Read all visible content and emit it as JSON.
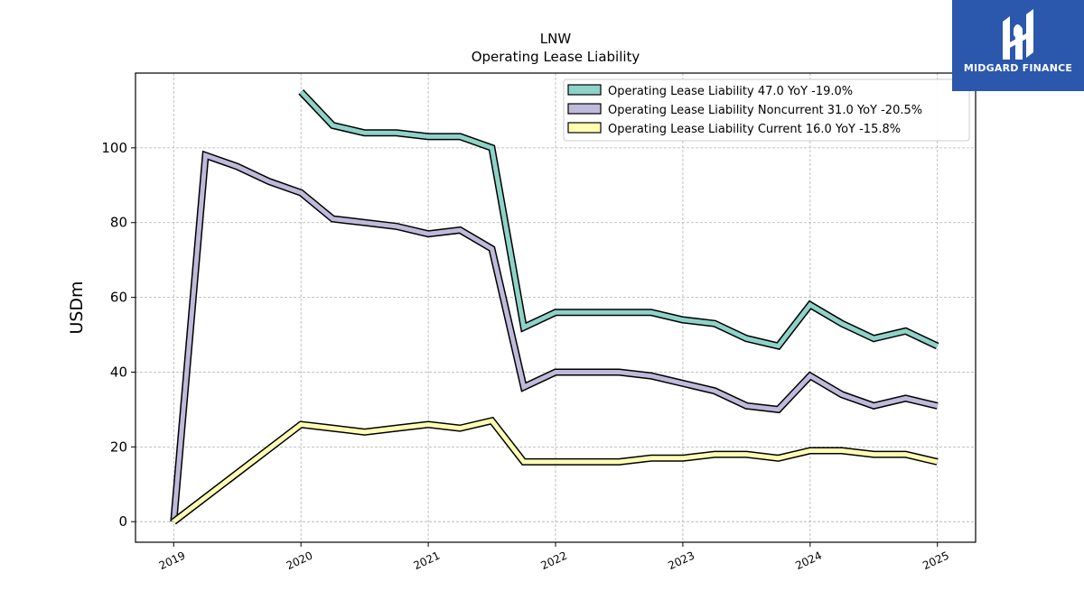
{
  "brand": {
    "name": "MIDGARD FINANCE",
    "bg_color": "#2b57ad"
  },
  "chart_data": {
    "type": "line",
    "title": "LNW",
    "subtitle": "Operating Lease Liability",
    "xlabel": "",
    "ylabel": "USDm",
    "ylim": [
      -5.5,
      120
    ],
    "xlim": [
      2018.7,
      2025.3
    ],
    "yticks": [
      0,
      20,
      40,
      60,
      80,
      100
    ],
    "xticks": [
      2019,
      2020,
      2021,
      2022,
      2023,
      2024,
      2025
    ],
    "xtick_labels": [
      "2019",
      "2020",
      "2021",
      "2022",
      "2023",
      "2024",
      "2025"
    ],
    "grid": true,
    "legend_position": "top-right",
    "series": [
      {
        "name": "Operating Lease Liability  47.0 YoY -19.0%",
        "color": "#8dd3c7",
        "points": [
          [
            2020.0,
            115.0
          ],
          [
            2020.25,
            106.0
          ],
          [
            2020.5,
            104.0
          ],
          [
            2020.75,
            104.0
          ],
          [
            2021.0,
            103.0
          ],
          [
            2021.25,
            103.0
          ],
          [
            2021.5,
            100.0
          ],
          [
            2021.75,
            52.0
          ],
          [
            2022.0,
            56.0
          ],
          [
            2022.25,
            56.0
          ],
          [
            2022.5,
            56.0
          ],
          [
            2022.75,
            56.0
          ],
          [
            2023.0,
            54.0
          ],
          [
            2023.25,
            53.0
          ],
          [
            2023.5,
            49.0
          ],
          [
            2023.75,
            47.0
          ],
          [
            2024.0,
            58.0
          ],
          [
            2024.25,
            53.0
          ],
          [
            2024.5,
            49.0
          ],
          [
            2024.75,
            51.0
          ],
          [
            2025.0,
            47.0
          ]
        ]
      },
      {
        "name": "Operating Lease Liability Noncurrent  31.0 YoY -20.5%",
        "color": "#bebada",
        "points": [
          [
            2019.0,
            0.0
          ],
          [
            2019.25,
            98.0
          ],
          [
            2019.5,
            95.0
          ],
          [
            2019.75,
            91.0
          ],
          [
            2020.0,
            88.0
          ],
          [
            2020.25,
            81.0
          ],
          [
            2020.5,
            80.0
          ],
          [
            2020.75,
            79.0
          ],
          [
            2021.0,
            77.0
          ],
          [
            2021.25,
            78.0
          ],
          [
            2021.5,
            73.0
          ],
          [
            2021.75,
            36.0
          ],
          [
            2022.0,
            40.0
          ],
          [
            2022.25,
            40.0
          ],
          [
            2022.5,
            40.0
          ],
          [
            2022.75,
            39.0
          ],
          [
            2023.0,
            37.0
          ],
          [
            2023.25,
            35.0
          ],
          [
            2023.5,
            31.0
          ],
          [
            2023.75,
            30.0
          ],
          [
            2024.0,
            39.0
          ],
          [
            2024.25,
            34.0
          ],
          [
            2024.5,
            31.0
          ],
          [
            2024.75,
            33.0
          ],
          [
            2025.0,
            31.0
          ]
        ]
      },
      {
        "name": "Operating Lease Liability Current  16.0 YoY -15.8%",
        "color": "#ffffb3",
        "points": [
          [
            2019.0,
            0.0
          ],
          [
            2020.0,
            26.0
          ],
          [
            2020.25,
            25.0
          ],
          [
            2020.5,
            24.0
          ],
          [
            2020.75,
            25.0
          ],
          [
            2021.0,
            26.0
          ],
          [
            2021.25,
            25.0
          ],
          [
            2021.5,
            27.0
          ],
          [
            2021.75,
            16.0
          ],
          [
            2022.0,
            16.0
          ],
          [
            2022.25,
            16.0
          ],
          [
            2022.5,
            16.0
          ],
          [
            2022.75,
            17.0
          ],
          [
            2023.0,
            17.0
          ],
          [
            2023.25,
            18.0
          ],
          [
            2023.5,
            18.0
          ],
          [
            2023.75,
            17.0
          ],
          [
            2024.0,
            19.0
          ],
          [
            2024.25,
            19.0
          ],
          [
            2024.5,
            18.0
          ],
          [
            2024.75,
            18.0
          ],
          [
            2025.0,
            16.0
          ]
        ]
      }
    ]
  }
}
